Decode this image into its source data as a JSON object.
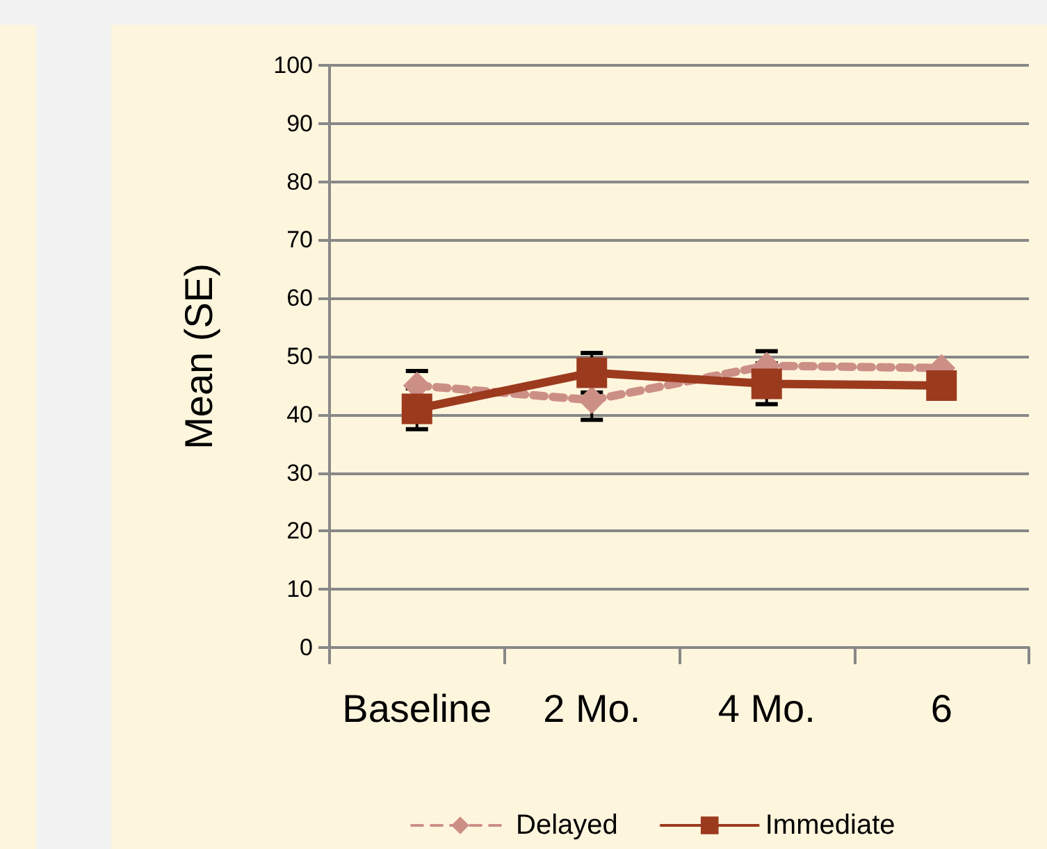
{
  "chart_data": {
    "type": "line",
    "ylabel": "Mean (SE)",
    "categories": [
      "Baseline",
      "2 Mo.",
      "4 Mo.",
      "6"
    ],
    "ylim": [
      0,
      100
    ],
    "yticks": [
      0,
      10,
      20,
      30,
      40,
      50,
      60,
      70,
      80,
      90,
      100
    ],
    "grid": "y",
    "legend": "bottom",
    "series": [
      {
        "name": "Delayed",
        "color": "#cc8f86",
        "marker": "diamond",
        "line_style": "dashed",
        "values": [
          45,
          42.5,
          48.4,
          48
        ],
        "errors": [
          2.5,
          3.4,
          2.5,
          null
        ]
      },
      {
        "name": "Immediate",
        "color": "#9c3a1e",
        "marker": "square",
        "line_style": "solid",
        "values": [
          41,
          47.2,
          45.3,
          45
        ],
        "errors": [
          3.5,
          3.4,
          3.5,
          null
        ]
      }
    ]
  }
}
